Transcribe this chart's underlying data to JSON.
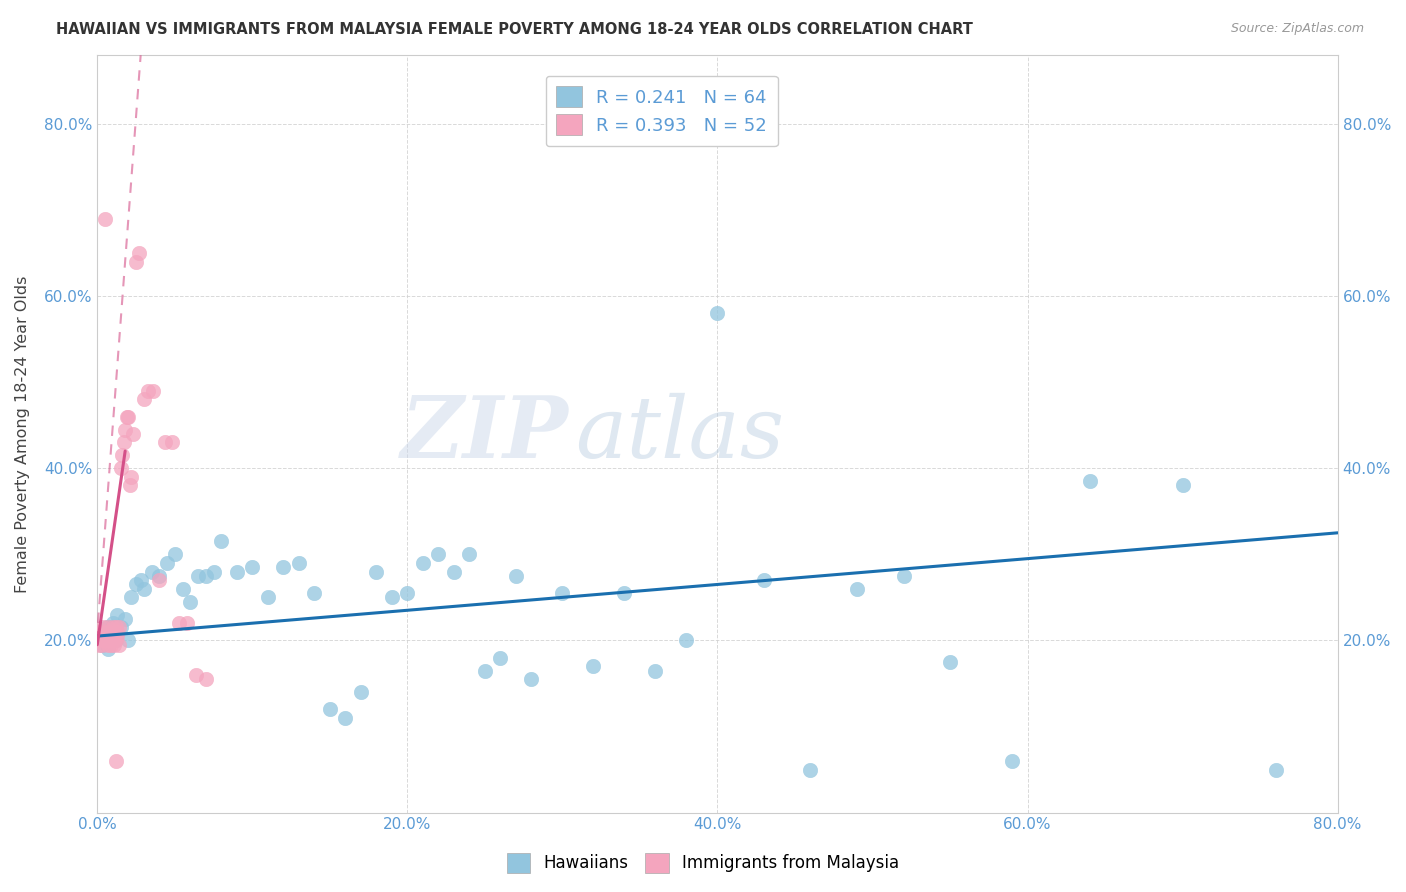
{
  "title": "HAWAIIAN VS IMMIGRANTS FROM MALAYSIA FEMALE POVERTY AMONG 18-24 YEAR OLDS CORRELATION CHART",
  "source": "Source: ZipAtlas.com",
  "ylabel": "Female Poverty Among 18-24 Year Olds",
  "watermark_zip": "ZIP",
  "watermark_atlas": "atlas",
  "xlim": [
    0.0,
    0.8
  ],
  "ylim": [
    0.0,
    0.88
  ],
  "xticks": [
    0.0,
    0.2,
    0.4,
    0.6,
    0.8
  ],
  "yticks": [
    0.0,
    0.2,
    0.4,
    0.6,
    0.8
  ],
  "xticklabels": [
    "0.0%",
    "20.0%",
    "40.0%",
    "60.0%",
    "80.0%"
  ],
  "yticklabels": [
    "",
    "20.0%",
    "40.0%",
    "60.0%",
    "80.0%"
  ],
  "blue_color": "#92c5de",
  "pink_color": "#f4a5be",
  "blue_line_color": "#1a6faf",
  "pink_line_color": "#d45088",
  "tick_color": "#5b9bd5",
  "legend1_label": "R = 0.241   N = 64",
  "legend2_label": "R = 0.393   N = 52",
  "hawaiians_x": [
    0.002,
    0.003,
    0.004,
    0.005,
    0.006,
    0.007,
    0.008,
    0.009,
    0.01,
    0.011,
    0.012,
    0.013,
    0.015,
    0.018,
    0.02,
    0.022,
    0.025,
    0.028,
    0.03,
    0.035,
    0.04,
    0.045,
    0.05,
    0.055,
    0.06,
    0.065,
    0.07,
    0.075,
    0.08,
    0.09,
    0.1,
    0.11,
    0.12,
    0.13,
    0.14,
    0.15,
    0.16,
    0.17,
    0.18,
    0.19,
    0.2,
    0.21,
    0.22,
    0.23,
    0.24,
    0.25,
    0.26,
    0.27,
    0.28,
    0.3,
    0.32,
    0.34,
    0.36,
    0.38,
    0.4,
    0.43,
    0.46,
    0.49,
    0.52,
    0.55,
    0.59,
    0.64,
    0.7,
    0.76
  ],
  "hawaiians_y": [
    0.21,
    0.195,
    0.205,
    0.2,
    0.215,
    0.19,
    0.215,
    0.205,
    0.22,
    0.21,
    0.2,
    0.23,
    0.215,
    0.225,
    0.2,
    0.25,
    0.265,
    0.27,
    0.26,
    0.28,
    0.275,
    0.29,
    0.3,
    0.26,
    0.245,
    0.275,
    0.275,
    0.28,
    0.315,
    0.28,
    0.285,
    0.25,
    0.285,
    0.29,
    0.255,
    0.12,
    0.11,
    0.14,
    0.28,
    0.25,
    0.255,
    0.29,
    0.3,
    0.28,
    0.3,
    0.165,
    0.18,
    0.275,
    0.155,
    0.255,
    0.17,
    0.255,
    0.165,
    0.2,
    0.58,
    0.27,
    0.05,
    0.26,
    0.275,
    0.175,
    0.06,
    0.385,
    0.38,
    0.05
  ],
  "malaysia_x": [
    0.0,
    0.001,
    0.001,
    0.002,
    0.002,
    0.003,
    0.003,
    0.004,
    0.004,
    0.005,
    0.005,
    0.006,
    0.006,
    0.007,
    0.007,
    0.008,
    0.008,
    0.009,
    0.009,
    0.01,
    0.01,
    0.011,
    0.011,
    0.012,
    0.012,
    0.013,
    0.013,
    0.014,
    0.014,
    0.015,
    0.016,
    0.017,
    0.018,
    0.019,
    0.02,
    0.021,
    0.022,
    0.023,
    0.025,
    0.027,
    0.03,
    0.033,
    0.036,
    0.04,
    0.044,
    0.048,
    0.053,
    0.058,
    0.064,
    0.07,
    0.005,
    0.012
  ],
  "malaysia_y": [
    0.2,
    0.195,
    0.21,
    0.2,
    0.205,
    0.21,
    0.195,
    0.215,
    0.2,
    0.2,
    0.21,
    0.205,
    0.2,
    0.215,
    0.195,
    0.2,
    0.21,
    0.205,
    0.195,
    0.215,
    0.2,
    0.205,
    0.195,
    0.215,
    0.2,
    0.205,
    0.21,
    0.195,
    0.215,
    0.4,
    0.415,
    0.43,
    0.445,
    0.46,
    0.46,
    0.38,
    0.39,
    0.44,
    0.64,
    0.65,
    0.48,
    0.49,
    0.49,
    0.27,
    0.43,
    0.43,
    0.22,
    0.22,
    0.16,
    0.155,
    0.69,
    0.06
  ],
  "blue_trend_start_x": 0.0,
  "blue_trend_start_y": 0.205,
  "blue_trend_end_x": 0.8,
  "blue_trend_end_y": 0.325,
  "pink_trend_solid_x0": 0.0,
  "pink_trend_solid_y0": 0.195,
  "pink_trend_solid_x1": 0.018,
  "pink_trend_solid_y1": 0.42,
  "pink_trend_dashed_x0": -0.005,
  "pink_trend_dashed_y0": 0.09,
  "pink_trend_dashed_x1": 0.028,
  "pink_trend_dashed_y1": 0.88
}
